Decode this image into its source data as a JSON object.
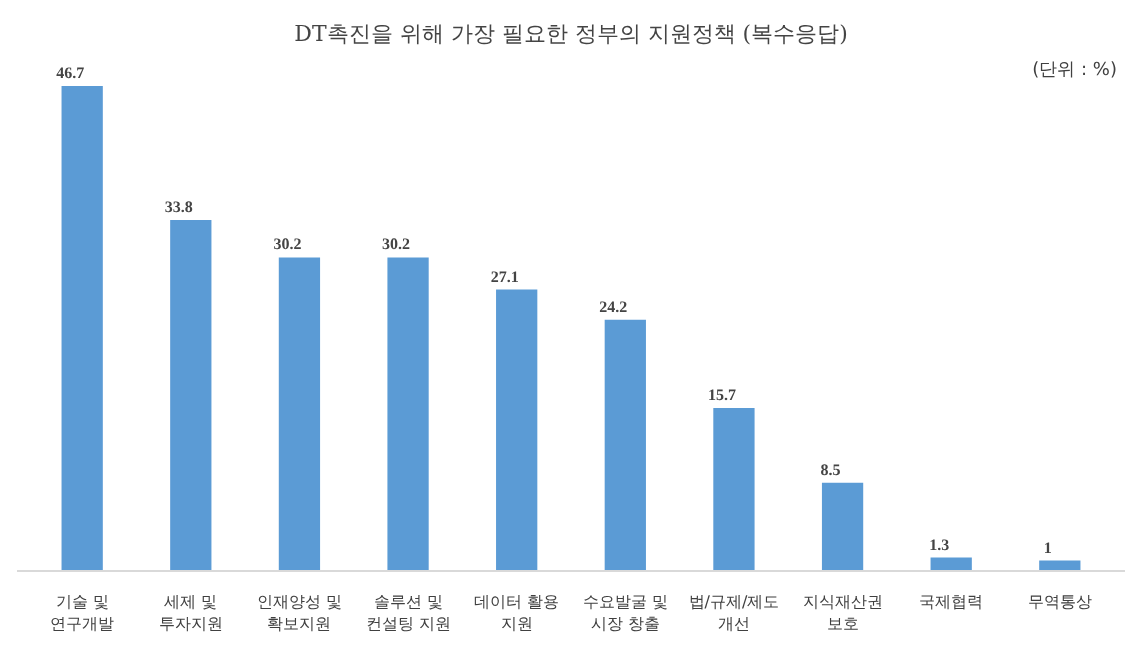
{
  "chart_data": {
    "type": "bar",
    "title": "DT촉진을 위해 가장 필요한 정부의 지원정책 (복수응답)",
    "annotations": [
      "(단위 : %)"
    ],
    "categories": [
      "기술 및\n연구개발",
      "세제 및\n투자지원",
      "인재양성 및\n확보지원",
      "솔루션 및\n컨설팅 지원",
      "데이터 활용\n지원",
      "수요발굴 및\n시장 창출",
      "법/규제/제도\n개선",
      "지식재산권\n보호",
      "국제협력",
      "무역통상"
    ],
    "values": [
      46.7,
      33.8,
      30.2,
      30.2,
      27.1,
      24.2,
      15.7,
      8.5,
      1.3,
      1
    ],
    "color": "#5b9bd5",
    "data_labels": true,
    "grid": false
  }
}
